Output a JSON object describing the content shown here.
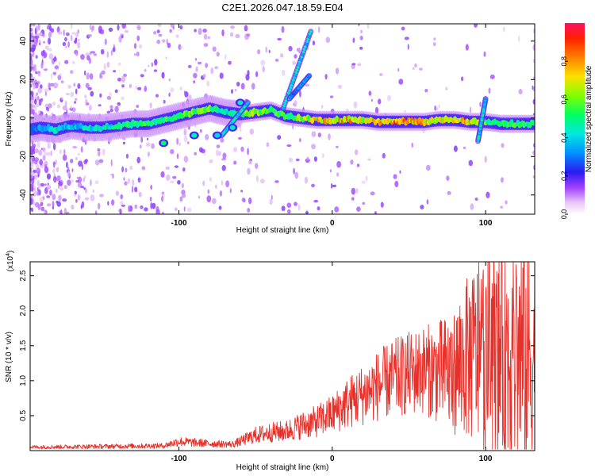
{
  "title": "C2E1.2026.047.18.59.E04",
  "chart_data": [
    {
      "type": "heatmap",
      "name": "spectrogram",
      "xlabel": "Height of straight line (km)",
      "ylabel": "Frequency (Hz)",
      "xlim": [
        -197,
        132
      ],
      "ylim": [
        -50,
        49
      ],
      "xticks": [
        -100,
        0,
        100
      ],
      "yticks": [
        -40,
        -20,
        0,
        20,
        40
      ],
      "colorbar": {
        "label": "Normalized spectral amplitude",
        "ticks": [
          0.0,
          0.2,
          0.4,
          0.6,
          0.8
        ],
        "range": [
          0,
          1
        ]
      },
      "ridge": [
        {
          "x": -197,
          "y": -6,
          "a": 0.3
        },
        {
          "x": -190,
          "y": -5,
          "a": 0.35
        },
        {
          "x": -180,
          "y": -6,
          "a": 0.45
        },
        {
          "x": -170,
          "y": -4,
          "a": 0.4
        },
        {
          "x": -160,
          "y": -5,
          "a": 0.45
        },
        {
          "x": -150,
          "y": -5,
          "a": 0.45
        },
        {
          "x": -140,
          "y": -4,
          "a": 0.5
        },
        {
          "x": -130,
          "y": -3,
          "a": 0.55
        },
        {
          "x": -120,
          "y": -3,
          "a": 0.55
        },
        {
          "x": -110,
          "y": -1,
          "a": 0.55
        },
        {
          "x": -100,
          "y": 1,
          "a": 0.6
        },
        {
          "x": -90,
          "y": 3,
          "a": 0.6
        },
        {
          "x": -80,
          "y": 5,
          "a": 0.6
        },
        {
          "x": -70,
          "y": 3,
          "a": 0.45
        },
        {
          "x": -60,
          "y": 2,
          "a": 0.55
        },
        {
          "x": -50,
          "y": 3,
          "a": 0.65
        },
        {
          "x": -40,
          "y": 4,
          "a": 0.6
        },
        {
          "x": -30,
          "y": 1,
          "a": 0.55
        },
        {
          "x": -20,
          "y": 0,
          "a": 0.65
        },
        {
          "x": -10,
          "y": -1,
          "a": 0.75
        },
        {
          "x": 0,
          "y": -1,
          "a": 0.8
        },
        {
          "x": 10,
          "y": -1,
          "a": 0.8
        },
        {
          "x": 20,
          "y": -1,
          "a": 0.75
        },
        {
          "x": 30,
          "y": -2,
          "a": 0.85
        },
        {
          "x": 40,
          "y": -2,
          "a": 0.85
        },
        {
          "x": 50,
          "y": -2,
          "a": 0.8
        },
        {
          "x": 60,
          "y": -2,
          "a": 0.8
        },
        {
          "x": 70,
          "y": -1,
          "a": 0.75
        },
        {
          "x": 80,
          "y": -1,
          "a": 0.7
        },
        {
          "x": 90,
          "y": -2,
          "a": 0.8
        },
        {
          "x": 100,
          "y": -2,
          "a": 0.6
        },
        {
          "x": 110,
          "y": -3,
          "a": 0.55
        },
        {
          "x": 120,
          "y": -3,
          "a": 0.55
        },
        {
          "x": 132,
          "y": -3,
          "a": 0.5
        }
      ],
      "branches": [
        {
          "x0": -72,
          "y0": -9,
          "x1": -55,
          "y1": 8,
          "a": 0.45
        },
        {
          "x0": -32,
          "y0": 5,
          "x1": -14,
          "y1": 45,
          "a": 0.45
        },
        {
          "x0": -28,
          "y0": 10,
          "x1": -15,
          "y1": 22,
          "a": 0.35
        },
        {
          "x0": 95,
          "y0": -12,
          "x1": 100,
          "y1": 10,
          "a": 0.45
        }
      ],
      "blobs": [
        {
          "x": -110,
          "y": -13,
          "a": 0.5
        },
        {
          "x": -90,
          "y": -9,
          "a": 0.45
        },
        {
          "x": -75,
          "y": -9,
          "a": 0.4
        },
        {
          "x": -65,
          "y": -5,
          "a": 0.45
        },
        {
          "x": -60,
          "y": 8,
          "a": 0.45
        }
      ],
      "scatter_zone": [
        -197,
        -60
      ]
    },
    {
      "type": "line",
      "name": "snr",
      "xlabel": "Height of straight line (km)",
      "ylabel": "SNR (10 * v/v)",
      "yscale_label": "(x10^4)",
      "xlim": [
        -197,
        132
      ],
      "ylim": [
        0,
        2.7
      ],
      "xticks": [
        -100,
        0,
        100
      ],
      "yticks": [
        0.5,
        1.0,
        1.5,
        2.0,
        2.5
      ],
      "color": "#e8302a",
      "envelope_x": [
        -197,
        -150,
        -110,
        -100,
        -80,
        -65,
        -60,
        -50,
        -40,
        -30,
        -20,
        -10,
        0,
        10,
        20,
        30,
        40,
        50,
        60,
        70,
        80,
        85,
        90,
        100,
        110,
        120,
        132
      ],
      "envelope_y": [
        0.05,
        0.06,
        0.07,
        0.13,
        0.1,
        0.09,
        0.13,
        0.22,
        0.26,
        0.28,
        0.36,
        0.42,
        0.52,
        0.68,
        0.8,
        0.93,
        1.03,
        1.1,
        1.16,
        1.12,
        1.13,
        1.25,
        1.35,
        1.42,
        1.38,
        1.4,
        1.3
      ]
    }
  ]
}
